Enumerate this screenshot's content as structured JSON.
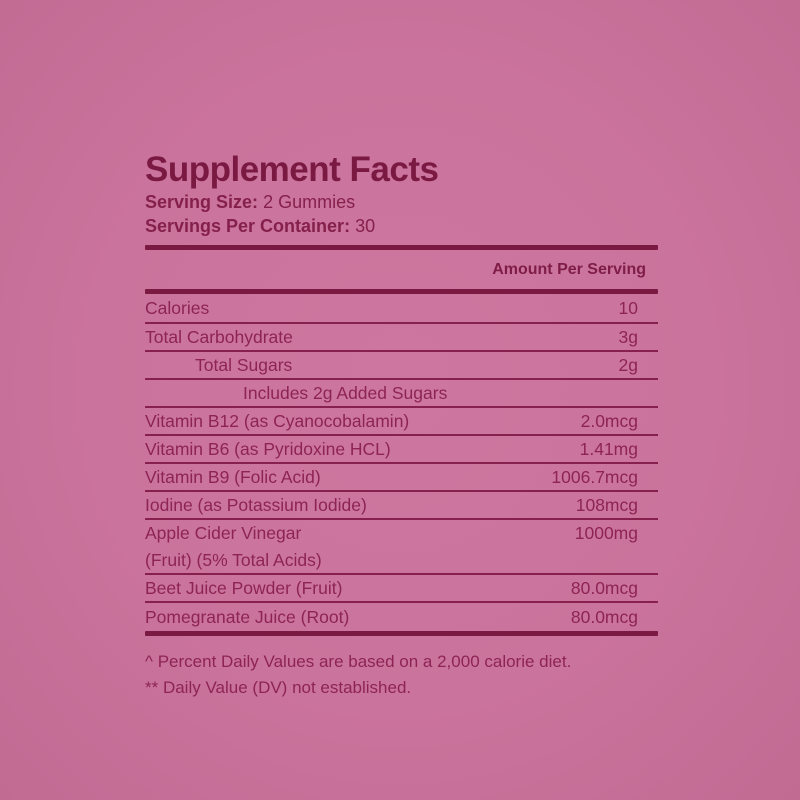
{
  "label": {
    "title": "Supplement Facts",
    "serving_size": {
      "label": "Serving Size:",
      "value": "2 Gummies"
    },
    "servings_per_container": {
      "label": "Servings Per Container:",
      "value": "30"
    },
    "amount_header": "Amount Per Serving",
    "rows": [
      {
        "name": "Calories",
        "amount": "10"
      },
      {
        "name": "Total Carbohydrate",
        "amount": "3g"
      },
      {
        "name": "Total Sugars",
        "amount": "2g"
      },
      {
        "name": "Includes 2g Added Sugars",
        "amount": ""
      },
      {
        "name": "Vitamin B12 (as Cyanocobalamin)",
        "amount": "2.0mcg"
      },
      {
        "name": "Vitamin B6 (as Pyridoxine HCL)",
        "amount": "1.41mg"
      },
      {
        "name": "Vitamin B9 (Folic Acid)",
        "amount": "1006.7mcg"
      },
      {
        "name": "Iodine (as Potassium Iodide)",
        "amount": "108mcg"
      },
      {
        "name": "Apple Cider Vinegar",
        "name_line2": "(Fruit) (5% Total Acids)",
        "amount": "1000mg"
      },
      {
        "name": "Beet Juice Powder (Fruit)",
        "amount": "80.0mcg"
      },
      {
        "name": "Pomegranate Juice (Root)",
        "amount": "80.0mcg"
      }
    ],
    "footnotes": [
      "^ Percent Daily Values are based on a 2,000 calorie diet.",
      "** Daily Value (DV) not established."
    ],
    "colors": {
      "background": "#ca739c",
      "ink_dark": "#7a1a42",
      "ink_body": "#8e2453"
    }
  }
}
